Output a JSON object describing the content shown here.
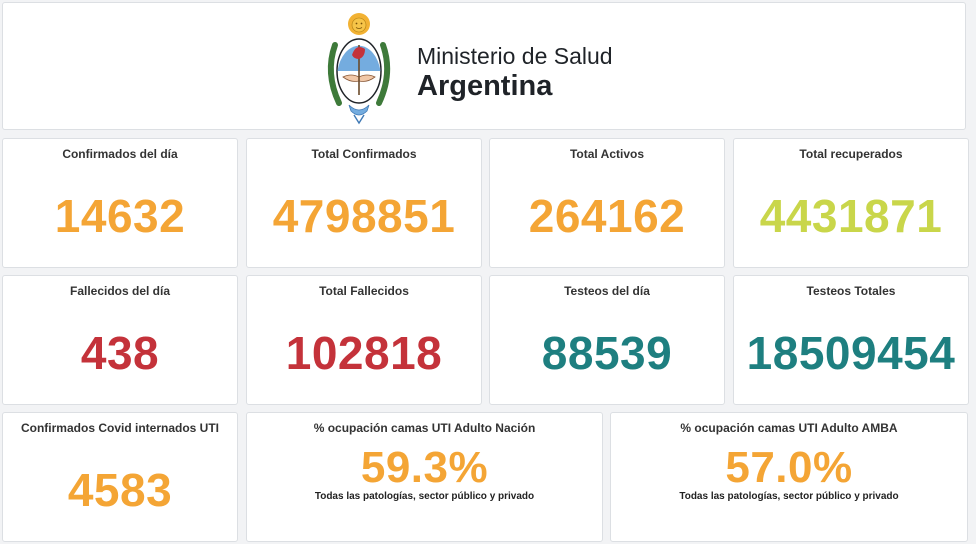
{
  "header": {
    "ministry": "Ministerio de Salud",
    "country": "Argentina"
  },
  "colors": {
    "orange": "#f4a535",
    "lime": "#c9d64a",
    "red": "#c4323a",
    "teal": "#1e7f80"
  },
  "stats": [
    {
      "title": "Confirmados del día",
      "value": "14632",
      "color": "#f4a535"
    },
    {
      "title": "Total Confirmados",
      "value": "4798851",
      "color": "#f4a535"
    },
    {
      "title": "Total Activos",
      "value": "264162",
      "color": "#f4a535"
    },
    {
      "title": "Total recuperados",
      "value": "4431871",
      "color": "#c9d64a"
    },
    {
      "title": "Fallecidos del día",
      "value": "438",
      "color": "#c4323a"
    },
    {
      "title": "Total Fallecidos",
      "value": "102818",
      "color": "#c4323a"
    },
    {
      "title": "Testeos del día",
      "value": "88539",
      "color": "#1e7f80"
    },
    {
      "title": "Testeos Totales",
      "value": "18509454",
      "color": "#1e7f80"
    },
    {
      "title": "Confirmados Covid internados UTI",
      "value": "4583",
      "color": "#f4a535"
    },
    {
      "title": "% ocupación camas UTI Adulto Nación",
      "value": "59.3%",
      "subtitle": "Todas las patologías, sector público y privado",
      "color": "#f4a535"
    },
    {
      "title": "% ocupación camas UTI Adulto AMBA",
      "value": "57.0%",
      "subtitle": "Todas las patologías, sector público y privado",
      "color": "#f4a535"
    }
  ]
}
